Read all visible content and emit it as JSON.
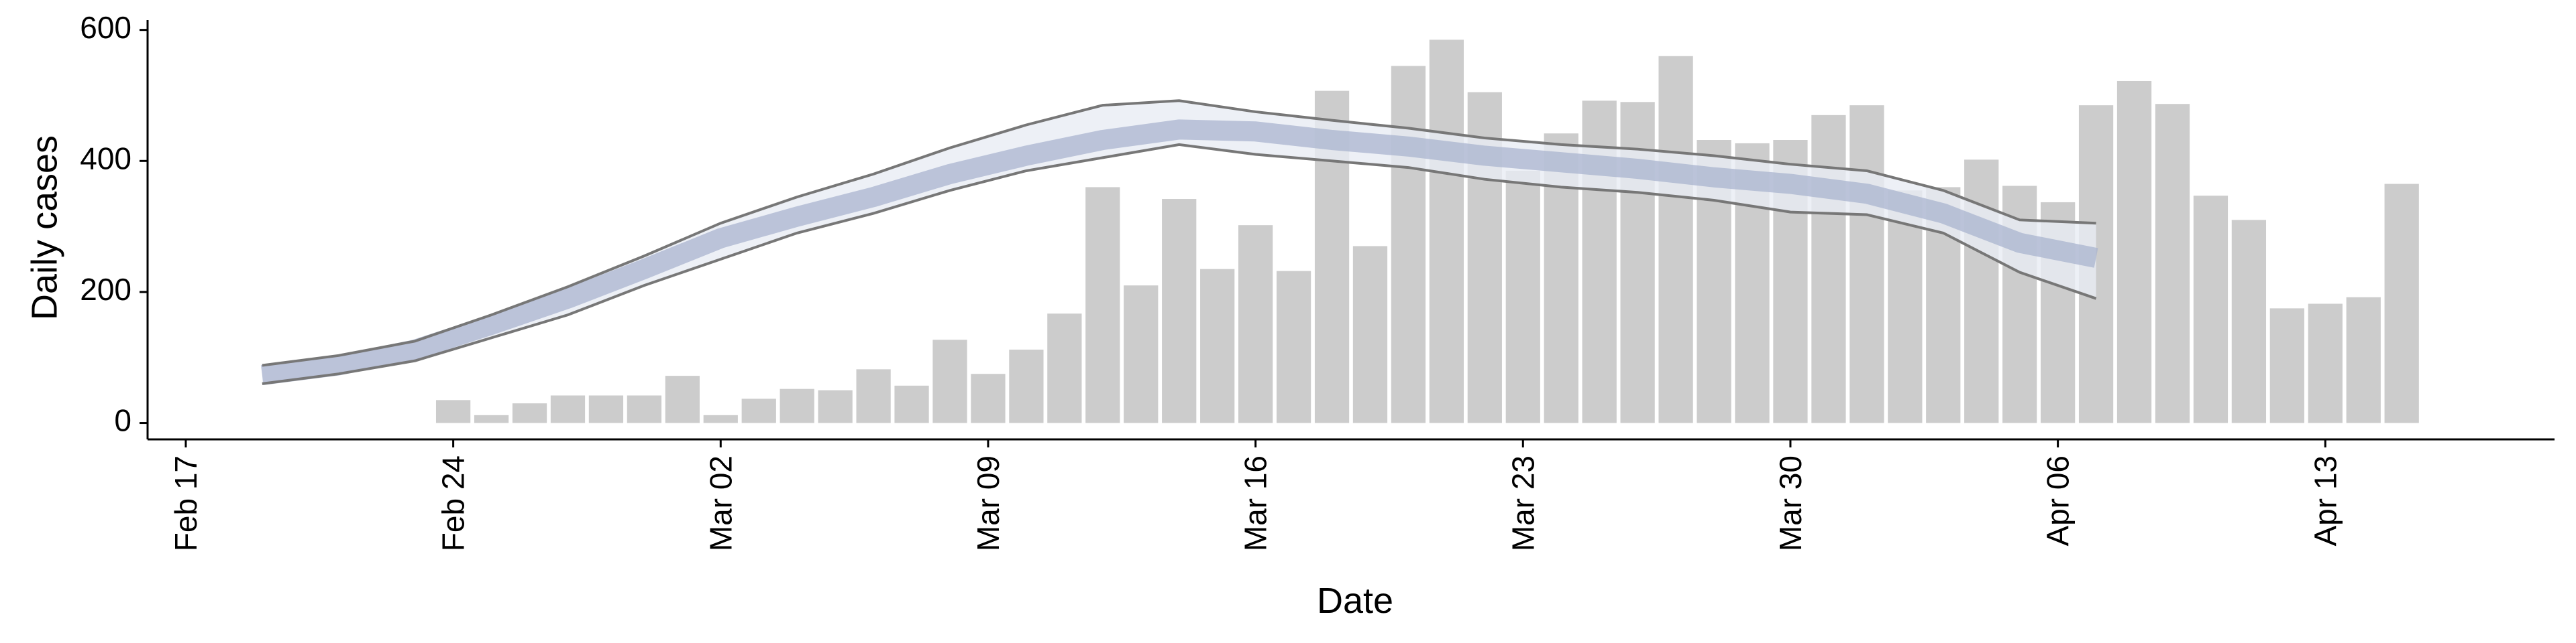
{
  "chart_data": {
    "type": "bar",
    "xlabel": "Date",
    "ylabel": "Daily cases",
    "xlim": [
      "Feb 16",
      "Apr 19"
    ],
    "ylim": [
      -25,
      615
    ],
    "xticks": [
      "Feb 17",
      "Feb 24",
      "Mar 02",
      "Mar 09",
      "Mar 16",
      "Mar 23",
      "Mar 30",
      "Apr 06",
      "Apr 13"
    ],
    "yticks": [
      0,
      200,
      400,
      600
    ],
    "color": "#cccccc",
    "x": [
      "Feb 24",
      "Feb 25",
      "Feb 26",
      "Feb 27",
      "Feb 28",
      "Feb 29",
      "Mar 01",
      "Mar 02",
      "Mar 03",
      "Mar 04",
      "Mar 05",
      "Mar 06",
      "Mar 07",
      "Mar 08",
      "Mar 09",
      "Mar 10",
      "Mar 11",
      "Mar 12",
      "Mar 13",
      "Mar 14",
      "Mar 15",
      "Mar 16",
      "Mar 17",
      "Mar 18",
      "Mar 19",
      "Mar 20",
      "Mar 21",
      "Mar 22",
      "Mar 23",
      "Mar 24",
      "Mar 25",
      "Mar 26",
      "Mar 27",
      "Mar 28",
      "Mar 29",
      "Mar 30",
      "Mar 31",
      "Apr 01",
      "Apr 02",
      "Apr 03",
      "Apr 04",
      "Apr 05",
      "Apr 06",
      "Apr 07",
      "Apr 08",
      "Apr 09",
      "Apr 10",
      "Apr 11",
      "Apr 12",
      "Apr 13",
      "Apr 14",
      "Apr 15"
    ],
    "values": [
      35,
      12,
      30,
      42,
      42,
      42,
      72,
      12,
      37,
      52,
      50,
      82,
      57,
      127,
      75,
      112,
      167,
      360,
      210,
      342,
      235,
      302,
      232,
      507,
      270,
      545,
      585,
      505,
      385,
      442,
      492,
      490,
      560,
      432,
      427,
      432,
      470,
      485,
      355,
      360,
      402,
      362,
      337,
      485,
      522,
      487,
      347,
      310,
      175,
      182,
      192,
      365
    ],
    "overlay": {
      "type": "line",
      "x": [
        "Feb 19",
        "Feb 21",
        "Feb 23",
        "Feb 25",
        "Feb 27",
        "Feb 29",
        "Mar 02",
        "Mar 04",
        "Mar 06",
        "Mar 08",
        "Mar 10",
        "Mar 12",
        "Mar 14",
        "Mar 16",
        "Mar 18",
        "Mar 20",
        "Mar 22",
        "Mar 24",
        "Mar 26",
        "Mar 28",
        "Mar 30",
        "Apr 01",
        "Apr 03",
        "Apr 05",
        "Apr 07"
      ],
      "median": [
        73,
        88,
        112,
        150,
        190,
        235,
        282,
        315,
        345,
        380,
        408,
        432,
        448,
        445,
        432,
        422,
        408,
        398,
        388,
        375,
        365,
        350,
        320,
        275,
        252
      ],
      "lower": [
        60,
        75,
        95,
        130,
        165,
        210,
        250,
        290,
        320,
        355,
        385,
        405,
        425,
        410,
        400,
        390,
        372,
        360,
        352,
        340,
        322,
        318,
        290,
        230,
        190
      ],
      "upper": [
        88,
        103,
        125,
        165,
        208,
        255,
        305,
        345,
        380,
        420,
        455,
        485,
        492,
        475,
        462,
        450,
        435,
        425,
        418,
        408,
        395,
        385,
        355,
        310,
        305
      ],
      "color": "#a9b4cf",
      "band_color": "#e9ecf4",
      "bound_color": "#777777"
    }
  }
}
